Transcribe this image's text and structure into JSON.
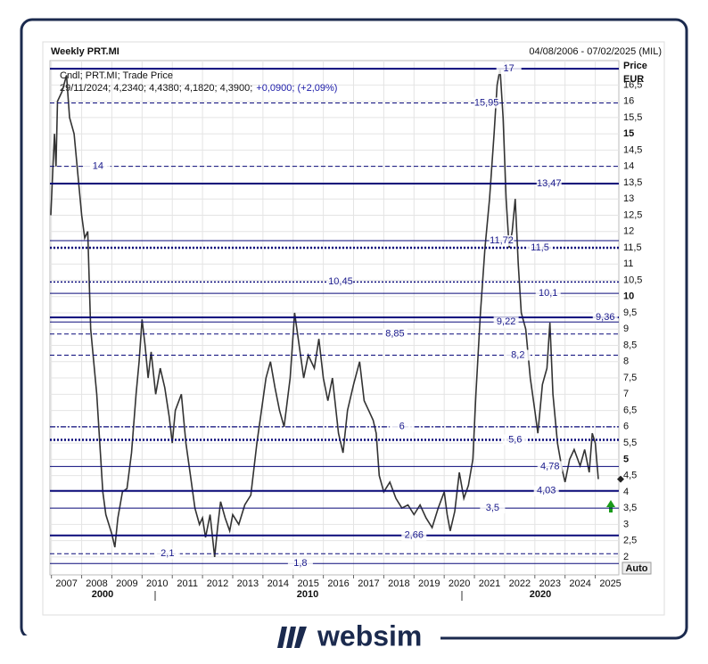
{
  "chart_data": {
    "type": "line",
    "title": "Weekly PRT.MI",
    "date_range": "04/08/2006 - 07/02/2025 (MIL)",
    "legend_line": "Cndl; PRT.MI; Trade Price",
    "last_bar": "29/11/2024; 4,2340; 4,4380; 4,1820; 4,3900;",
    "last_change": "+0,0900; (+2,09%)",
    "y_label": "Price",
    "y_unit": "EUR",
    "auto_label": "Auto",
    "era_labels": [
      "2000",
      "2010",
      "2020"
    ],
    "color": "#333333",
    "grid": true,
    "xlim": [
      2006.95,
      2025.78
    ],
    "xticks": [
      2007,
      2008,
      2009,
      2010,
      2011,
      2012,
      2013,
      2014,
      2015,
      2016,
      2017,
      2018,
      2019,
      2020,
      2021,
      2022,
      2023,
      2024,
      2025
    ],
    "ylim": [
      1.45,
      17.25
    ],
    "yticks": [
      2,
      {
        "value": 2.5,
        "label": "2,5"
      },
      3,
      {
        "value": 3.5,
        "label": "3,5"
      },
      4,
      {
        "value": 4.5,
        "label": "4,5"
      },
      5,
      {
        "value": 5.5,
        "label": "5,5"
      },
      6,
      {
        "value": 6.5,
        "label": "6,5"
      },
      7,
      {
        "value": 7.5,
        "label": "7,5"
      },
      8,
      {
        "value": 8.5,
        "label": "8,5"
      },
      9,
      {
        "value": 9.5,
        "label": "9,5"
      },
      10,
      {
        "value": 10.5,
        "label": "10,5"
      },
      11,
      {
        "value": 11.5,
        "label": "11,5"
      },
      12,
      {
        "value": 12.5,
        "label": "12,5"
      },
      13,
      {
        "value": 13.5,
        "label": "13,5"
      },
      14,
      {
        "value": 14.5,
        "label": "14,5"
      },
      15,
      {
        "value": 15.5,
        "label": "15,5"
      },
      16,
      {
        "value": 16.5,
        "label": "16,5"
      }
    ],
    "bold_yticks": [
      5,
      10,
      15
    ],
    "x": [
      2006.98,
      2007.05,
      2007.1,
      2007.15,
      2007.2,
      2007.35,
      2007.5,
      2007.6,
      2007.75,
      2007.9,
      2008.0,
      2008.1,
      2008.2,
      2008.3,
      2008.4,
      2008.5,
      2008.6,
      2008.7,
      2008.8,
      2008.9,
      2009.0,
      2009.1,
      2009.2,
      2009.35,
      2009.5,
      2009.65,
      2009.8,
      2009.9,
      2010.0,
      2010.1,
      2010.2,
      2010.3,
      2010.45,
      2010.6,
      2010.75,
      2010.9,
      2011.0,
      2011.1,
      2011.3,
      2011.45,
      2011.6,
      2011.75,
      2011.9,
      2012.0,
      2012.1,
      2012.25,
      2012.4,
      2012.5,
      2012.6,
      2012.75,
      2012.9,
      2013.0,
      2013.2,
      2013.4,
      2013.6,
      2013.8,
      2013.95,
      2014.1,
      2014.25,
      2014.4,
      2014.55,
      2014.7,
      2014.9,
      2015.05,
      2015.2,
      2015.35,
      2015.5,
      2015.7,
      2015.85,
      2016.0,
      2016.15,
      2016.3,
      2016.5,
      2016.65,
      2016.8,
      2017.0,
      2017.2,
      2017.35,
      2017.5,
      2017.65,
      2017.75,
      2017.85,
      2018.0,
      2018.2,
      2018.4,
      2018.6,
      2018.8,
      2019.0,
      2019.2,
      2019.4,
      2019.6,
      2019.8,
      2020.0,
      2020.1,
      2020.2,
      2020.35,
      2020.5,
      2020.65,
      2020.8,
      2020.95,
      2021.05,
      2021.2,
      2021.35,
      2021.5,
      2021.65,
      2021.75,
      2021.85,
      2021.95,
      2022.05,
      2022.15,
      2022.25,
      2022.35,
      2022.45,
      2022.55,
      2022.7,
      2022.85,
      2023.0,
      2023.1,
      2023.25,
      2023.4,
      2023.5,
      2023.6,
      2023.75,
      2023.9,
      2024.0,
      2024.15,
      2024.3,
      2024.5,
      2024.65,
      2024.8,
      2024.9,
      2025.0,
      2025.1
    ],
    "values": [
      12.5,
      14,
      15,
      14,
      16,
      16.3,
      16.8,
      15.5,
      15,
      13.5,
      12.5,
      11.8,
      12,
      9,
      8,
      7,
      5.5,
      4,
      3.3,
      3,
      2.7,
      2.3,
      3.2,
      4,
      4.1,
      5.2,
      7,
      8,
      9.3,
      8.5,
      7.5,
      8.3,
      7,
      7.8,
      7.2,
      6.3,
      5.5,
      6.5,
      7,
      5.5,
      4.5,
      3.5,
      3,
      3.2,
      2.6,
      3.3,
      2,
      2.9,
      3.7,
      3.2,
      2.8,
      3.3,
      3,
      3.6,
      3.9,
      5.5,
      6.5,
      7.5,
      8,
      7.2,
      6.5,
      6,
      7.5,
      9.5,
      8.5,
      7.5,
      8.2,
      7.8,
      8.7,
      7.5,
      6.8,
      7.5,
      5.8,
      5.2,
      6.5,
      7.3,
      8,
      6.8,
      6.5,
      6.2,
      5.8,
      4.5,
      4,
      4.3,
      3.8,
      3.5,
      3.6,
      3.3,
      3.6,
      3.2,
      2.9,
      3.5,
      4,
      3.3,
      2.8,
      3.4,
      4.6,
      3.8,
      4.2,
      5,
      7,
      9.5,
      11.5,
      13,
      15,
      16.5,
      17,
      15.5,
      13,
      11.5,
      12,
      13,
      11,
      9.5,
      9,
      7.5,
      6.5,
      5.8,
      7.3,
      7.8,
      9.2,
      7,
      5.5,
      4.7,
      4.3,
      5,
      5.3,
      4.8,
      5.3,
      4.6,
      5.8,
      5.5,
      4.39
    ],
    "last_price": 4.39,
    "levels": [
      {
        "value": 17,
        "style": "solid-thick",
        "x": 2022.14
      },
      {
        "value": 15.95,
        "label": "15,95",
        "style": "dashed",
        "x": 2021.4
      },
      {
        "value": 14,
        "style": "dashed",
        "x": 2008.54
      },
      {
        "value": 13.47,
        "label": "13,47",
        "style": "solid-thick",
        "x": 2023.47
      },
      {
        "value": 11.72,
        "label": "11,72",
        "style": "solid",
        "x": 2021.9
      },
      {
        "value": 11.5,
        "label": "11,5",
        "style": "dotted-thick",
        "x": 2023.17
      },
      {
        "value": 10.45,
        "label": "10,45",
        "style": "dotted",
        "x": 2016.57
      },
      {
        "value": 10.1,
        "label": "10,1",
        "style": "solid",
        "x": 2023.44
      },
      {
        "value": 9.36,
        "label": "9,36",
        "style": "solid-thick",
        "x": 2025.33
      },
      {
        "value": 9.22,
        "label": "9,22",
        "style": "solid",
        "x": 2022.05
      },
      {
        "value": 8.85,
        "label": "8,85",
        "style": "dashed",
        "x": 2018.37
      },
      {
        "value": 8.2,
        "label": "8,2",
        "style": "dashed",
        "x": 2022.44
      },
      {
        "value": 6,
        "style": "dashdot",
        "x": 2018.6
      },
      {
        "value": 5.6,
        "label": "5,6",
        "style": "dotted-thick",
        "x": 2022.35
      },
      {
        "value": 4.78,
        "label": "4,78",
        "style": "solid",
        "x": 2023.5
      },
      {
        "value": 4.03,
        "label": "4,03",
        "style": "solid-thick",
        "x": 2023.38
      },
      {
        "value": 3.5,
        "label": "3,5",
        "style": "solid",
        "x": 2021.6
      },
      {
        "value": 2.66,
        "label": "2,66",
        "style": "solid-thick",
        "x": 2019.0
      },
      {
        "value": 2.1,
        "label": "2,1",
        "style": "dashed",
        "x": 2010.84
      },
      {
        "value": 1.8,
        "label": "1,8",
        "style": "solid",
        "x": 2015.24
      }
    ]
  },
  "brand": "websim"
}
